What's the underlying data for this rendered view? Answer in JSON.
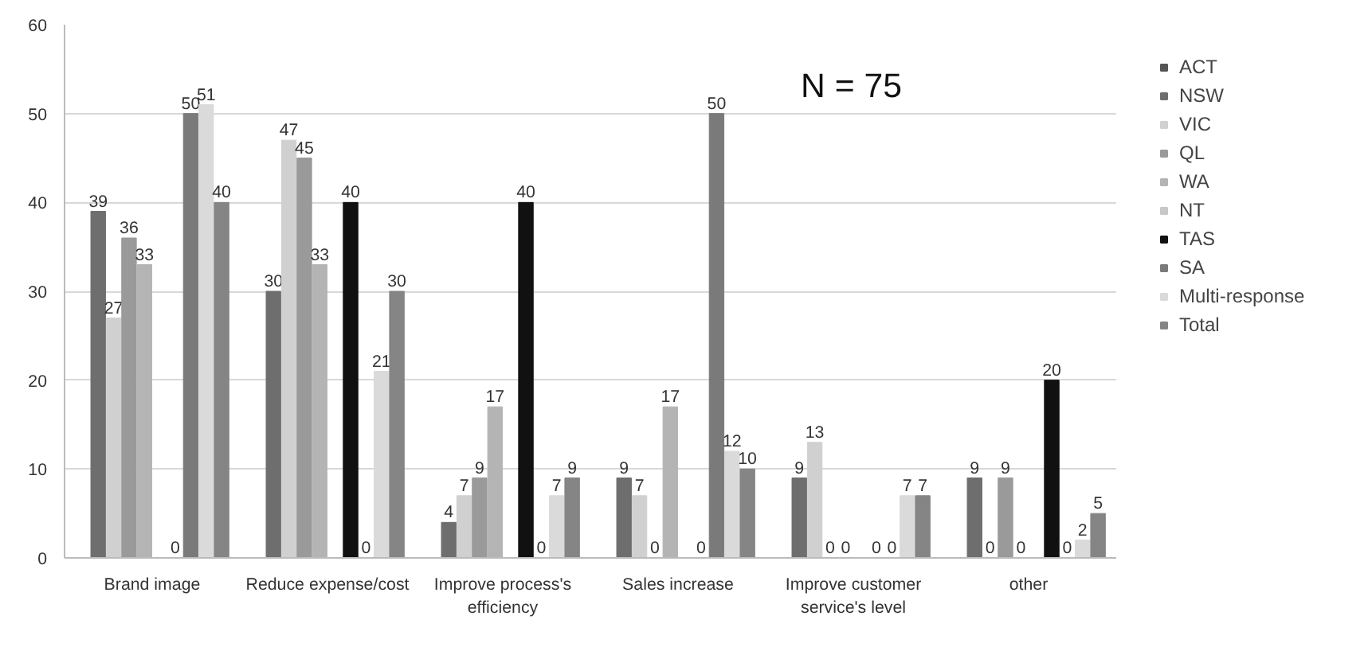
{
  "chart_data": {
    "type": "bar",
    "categories": [
      "Brand image",
      "Reduce expense/cost",
      "Improve process's efficiency",
      "Sales increase",
      "Improve customer service's level",
      "other"
    ],
    "series": [
      {
        "name": "ACT",
        "color": "#555555",
        "values": [
          null,
          null,
          null,
          null,
          null,
          null
        ]
      },
      {
        "name": "NSW",
        "color": "#6e6e6e",
        "values": [
          39,
          30,
          4,
          9,
          9,
          9
        ]
      },
      {
        "name": "VIC",
        "color": "#d0d0d0",
        "values": [
          27,
          47,
          7,
          7,
          13,
          0
        ]
      },
      {
        "name": "QL",
        "color": "#9a9a9a",
        "values": [
          36,
          45,
          9,
          0,
          0,
          9
        ]
      },
      {
        "name": "WA",
        "color": "#b4b4b4",
        "values": [
          33,
          33,
          17,
          17,
          0,
          0
        ]
      },
      {
        "name": "NT",
        "color": "#c8c8c8",
        "values": [
          null,
          null,
          null,
          null,
          null,
          null
        ]
      },
      {
        "name": "TAS",
        "color": "#111111",
        "values": [
          0,
          40,
          40,
          0,
          0,
          20
        ]
      },
      {
        "name": "SA",
        "color": "#7a7a7a",
        "values": [
          50,
          0,
          0,
          50,
          0,
          0
        ]
      },
      {
        "name": "Multi-response",
        "color": "#dadada",
        "values": [
          51,
          21,
          7,
          12,
          7,
          2
        ]
      },
      {
        "name": "Total",
        "color": "#858585",
        "values": [
          40,
          30,
          9,
          10,
          7,
          5
        ]
      }
    ],
    "ylim": [
      0,
      60
    ],
    "yticks": [
      0,
      10,
      20,
      30,
      40,
      50,
      60
    ],
    "grid": "y",
    "legend": "right",
    "data_labels": true,
    "annotations": [
      "N = 75"
    ]
  }
}
